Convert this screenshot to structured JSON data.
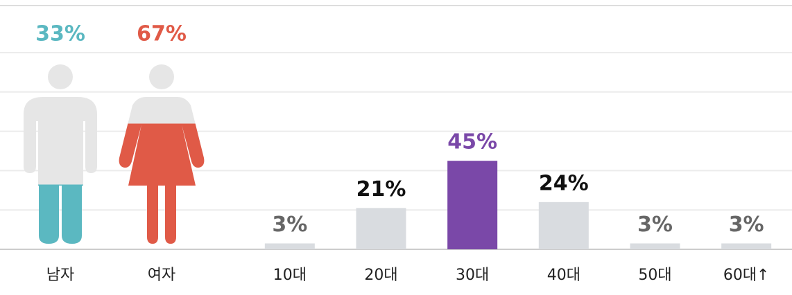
{
  "chart_data": [
    {
      "type": "pictogram",
      "categories": [
        "남자",
        "여자"
      ],
      "values": [
        33,
        67
      ],
      "value_labels": [
        "33%",
        "67%"
      ],
      "colors": [
        "#5bb8c1",
        "#e05a47"
      ],
      "base_color": "#e6e6e6",
      "ylim": [
        0,
        100
      ]
    },
    {
      "type": "bar",
      "categories": [
        "10대",
        "20대",
        "30대",
        "40대",
        "50대",
        "60대↑"
      ],
      "values": [
        3,
        21,
        45,
        24,
        3,
        3
      ],
      "value_labels": [
        "3%",
        "21%",
        "45%",
        "24%",
        "3%",
        "3%"
      ],
      "colors": [
        "#d9dce0",
        "#d9dce0",
        "#7a48a8",
        "#d9dce0",
        "#d9dce0",
        "#d9dce0"
      ],
      "label_colors": [
        "#666666",
        "#111111",
        "#7a48a8",
        "#111111",
        "#666666",
        "#666666"
      ],
      "ylim": [
        0,
        100
      ],
      "yticks": [
        0,
        20,
        40,
        60,
        80,
        100
      ],
      "grid": true
    }
  ]
}
